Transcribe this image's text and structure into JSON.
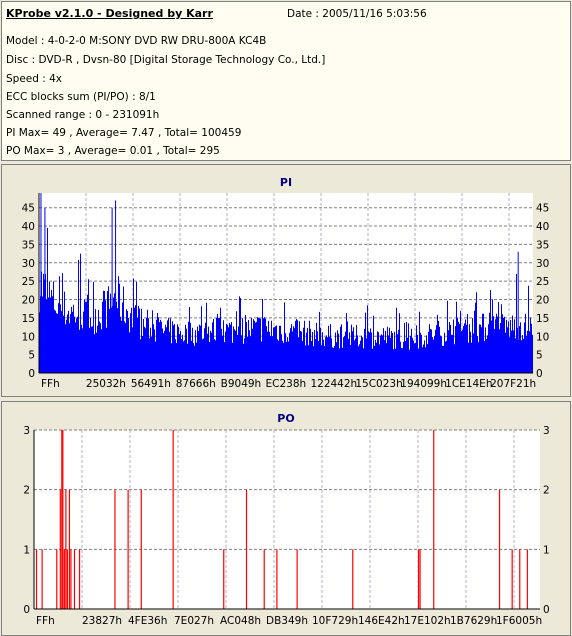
{
  "header": {
    "title": "KProbe v2.1.0 - Designed by Karr",
    "date": "Date : 2005/11/16 5:03:56",
    "lines": [
      "Model : 4-0-2-0 M:SONY    DVD RW DRU-800A  KC4B",
      "Disc : DVD-R , Dvsn-80 [Digital Storage Technology Co., Ltd.]",
      "Speed : 4x",
      "ECC blocks sum (PI/PO) : 8/1",
      "Scanned range : 0 - 231091h",
      "PI Max= 49 , Average= 7.47 , Total= 100459",
      "PO Max= 3 , Average= 0.01 , Total= 295"
    ]
  },
  "chart_data": [
    {
      "type": "bar",
      "title": "PI",
      "ylim": [
        0,
        49
      ],
      "yticks": [
        0,
        5,
        10,
        15,
        20,
        25,
        30,
        35,
        40,
        45
      ],
      "xticklabels": [
        "FFh",
        "25032h",
        "56491h",
        "87666h",
        "B9049h",
        "EC238h",
        "122442h",
        "15C023h",
        "194099h",
        "1CE14Eh",
        "207F21h"
      ],
      "color": "#0000FF",
      "grid": true,
      "max": 49,
      "average": 7.47,
      "envelope": [
        [
          0.0,
          30,
          49
        ],
        [
          0.02,
          25,
          45
        ],
        [
          0.04,
          22,
          38
        ],
        [
          0.06,
          20,
          36
        ],
        [
          0.08,
          20,
          33
        ],
        [
          0.1,
          18,
          30
        ],
        [
          0.12,
          20,
          32
        ],
        [
          0.14,
          22,
          36
        ],
        [
          0.155,
          25,
          47
        ],
        [
          0.17,
          22,
          36
        ],
        [
          0.19,
          18,
          28
        ],
        [
          0.22,
          15,
          24
        ],
        [
          0.25,
          14,
          22
        ],
        [
          0.3,
          13,
          20
        ],
        [
          0.35,
          14,
          22
        ],
        [
          0.4,
          14,
          22
        ],
        [
          0.45,
          15,
          24
        ],
        [
          0.5,
          14,
          22
        ],
        [
          0.55,
          13,
          20
        ],
        [
          0.6,
          12,
          19
        ],
        [
          0.65,
          12,
          19
        ],
        [
          0.7,
          12,
          19
        ],
        [
          0.75,
          11,
          17
        ],
        [
          0.8,
          13,
          21
        ],
        [
          0.85,
          14,
          22
        ],
        [
          0.9,
          15,
          23
        ],
        [
          0.95,
          15,
          24
        ],
        [
          0.97,
          16,
          33
        ],
        [
          1.0,
          14,
          22
        ]
      ]
    },
    {
      "type": "bar",
      "title": "PO",
      "ylim": [
        0,
        3
      ],
      "yticks": [
        0,
        1,
        2,
        3
      ],
      "xticklabels": [
        "FFh",
        "23827h",
        "4FE36h",
        "7E027h",
        "AC048h",
        "DB349h",
        "10F729h",
        "146E42h",
        "17E102h",
        "1B7629h",
        "1F6005h"
      ],
      "color": "#FF0000",
      "grid": true,
      "spikes": [
        [
          0.005,
          1
        ],
        [
          0.016,
          1
        ],
        [
          0.045,
          1
        ],
        [
          0.052,
          2
        ],
        [
          0.055,
          3
        ],
        [
          0.057,
          3
        ],
        [
          0.06,
          1
        ],
        [
          0.063,
          2
        ],
        [
          0.066,
          1
        ],
        [
          0.07,
          2
        ],
        [
          0.073,
          1
        ],
        [
          0.08,
          1
        ],
        [
          0.09,
          1
        ],
        [
          0.16,
          2
        ],
        [
          0.186,
          2
        ],
        [
          0.212,
          2
        ],
        [
          0.275,
          3
        ],
        [
          0.375,
          1
        ],
        [
          0.42,
          2
        ],
        [
          0.455,
          1
        ],
        [
          0.48,
          1
        ],
        [
          0.52,
          1
        ],
        [
          0.63,
          1
        ],
        [
          0.76,
          1
        ],
        [
          0.763,
          1
        ],
        [
          0.79,
          3
        ],
        [
          0.92,
          2
        ],
        [
          0.945,
          1
        ],
        [
          0.96,
          1
        ],
        [
          0.975,
          1
        ]
      ]
    }
  ]
}
